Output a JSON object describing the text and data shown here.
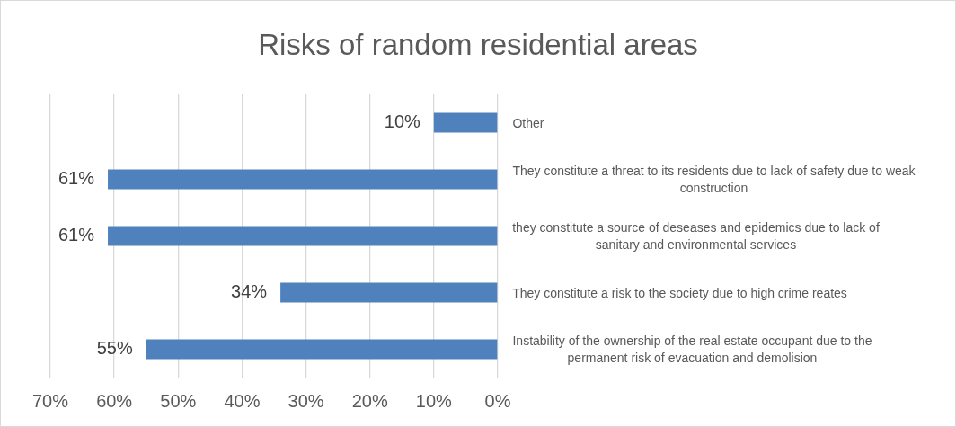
{
  "chart_data": {
    "type": "bar",
    "orientation": "horizontal",
    "title": "Risks of random residential areas",
    "categories": [
      "Other",
      "They constitute a threat to its residents due to lack of safety due to weak construction",
      "they constitute a source of deseases and epidemics due to lack of sanitary and environmental services",
      "They constitute a risk to the society due to high crime reates",
      "Instability of the ownership of the real estate occupant due to the permanent risk of evacuation and demolision"
    ],
    "values": [
      10,
      61,
      61,
      34,
      55
    ],
    "value_labels": [
      "10%",
      "61%",
      "61%",
      "34%",
      "55%"
    ],
    "color": "#4f81bd",
    "xlim": [
      70,
      0
    ],
    "xticks": [
      {
        "value": 70,
        "label": "70%"
      },
      {
        "value": 60,
        "label": "60%"
      },
      {
        "value": 50,
        "label": "50%"
      },
      {
        "value": 40,
        "label": "40%"
      },
      {
        "value": 30,
        "label": "30%"
      },
      {
        "value": 20,
        "label": "20%"
      },
      {
        "value": 10,
        "label": "10%"
      },
      {
        "value": 0,
        "label": "0%"
      }
    ],
    "grid": "x"
  }
}
